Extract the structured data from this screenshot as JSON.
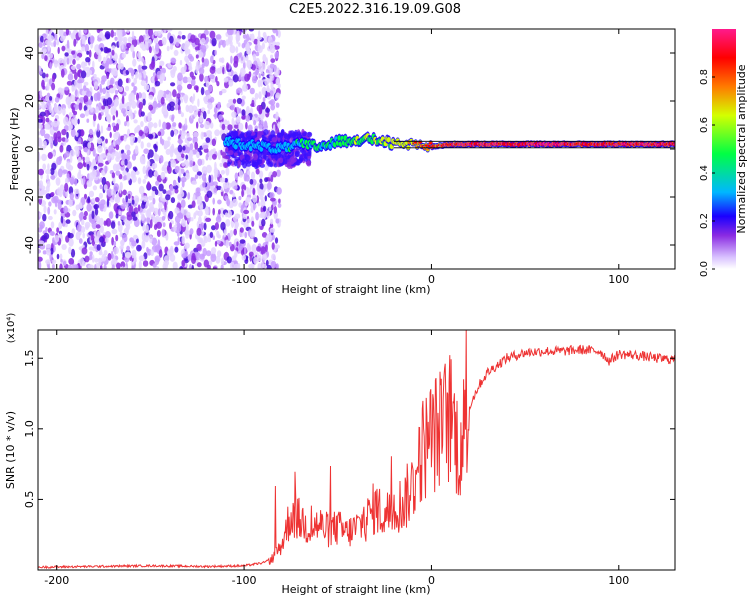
{
  "title": "C2E5.2022.316.19.09.G08",
  "chart_data": [
    {
      "type": "heatmap",
      "xlabel": "Height of straight line (km)",
      "ylabel": "Frequency (Hz)",
      "xlim": [
        -210,
        130
      ],
      "ylim": [
        -50,
        50
      ],
      "xticks": [
        -200,
        -100,
        0,
        100
      ],
      "yticks": [
        -40,
        -20,
        0,
        20,
        40
      ],
      "noise_region_x": [
        -210,
        -87
      ],
      "signal_line": {
        "x": [
          -110,
          -90,
          -80,
          -70,
          -60,
          -50,
          -40,
          -30,
          -20,
          -10,
          0,
          10,
          20,
          40,
          60,
          80,
          100,
          130
        ],
        "freq_hz": [
          3,
          1,
          0,
          2,
          1,
          3,
          4,
          4,
          2,
          2,
          1,
          2,
          2,
          2,
          2,
          2,
          2,
          2
        ],
        "amplitude": [
          0.25,
          0.3,
          0.35,
          0.45,
          0.5,
          0.55,
          0.6,
          0.65,
          0.7,
          0.75,
          0.8,
          0.85,
          0.9,
          0.9,
          0.95,
          0.9,
          0.9,
          0.9
        ]
      },
      "colorbar": {
        "label": "Normalized spectral amplitude",
        "range": [
          0,
          1
        ],
        "ticks": [
          "0.0",
          "0.2",
          "0.4",
          "0.6",
          "0.8"
        ]
      },
      "colors": [
        "#ffffff",
        "#d6b6ff",
        "#8a2be2",
        "#1a00ff",
        "#00b7ff",
        "#00ff7a",
        "#d4ff00",
        "#ff7a00",
        "#ff0000",
        "#ff1a8c"
      ]
    },
    {
      "type": "line",
      "xlabel": "Height of straight line (km)",
      "ylabel": "SNR (10 * v/v)",
      "multiplier_label": "(x10⁴)",
      "xlim": [
        -210,
        130
      ],
      "ylim": [
        0,
        17000
      ],
      "xticks": [
        -200,
        -100,
        0,
        100
      ],
      "yticks": [
        5000,
        10000,
        15000
      ],
      "ytick_labels": [
        "0.5",
        "1.0",
        "1.5"
      ],
      "series": [
        {
          "color": "#ee3333",
          "x": [
            -210,
            -180,
            -150,
            -120,
            -100,
            -90,
            -85,
            -80,
            -75,
            -70,
            -65,
            -60,
            -55,
            -50,
            -45,
            -40,
            -35,
            -30,
            -25,
            -20,
            -15,
            -10,
            -5,
            0,
            5,
            10,
            15,
            20,
            25,
            30,
            40,
            50,
            60,
            70,
            80,
            90,
            95,
            100,
            110,
            120,
            130
          ],
          "y": [
            200,
            250,
            300,
            250,
            300,
            500,
            800,
            1800,
            4000,
            3500,
            3000,
            3200,
            2800,
            3000,
            2600,
            3000,
            3500,
            4500,
            3800,
            4500,
            4700,
            6000,
            8500,
            9500,
            10000,
            11000,
            8500,
            11500,
            13000,
            14000,
            15000,
            15400,
            15500,
            15500,
            15600,
            15500,
            14800,
            15300,
            15200,
            15000,
            14900
          ]
        }
      ]
    }
  ]
}
